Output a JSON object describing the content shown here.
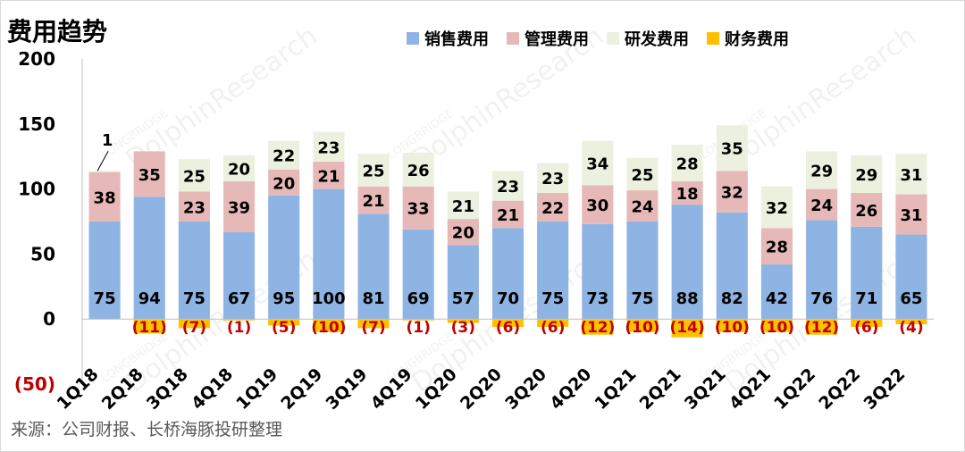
{
  "title": "费用趋势",
  "source": "来源：公司财报、长桥海豚投研整理",
  "colors": {
    "selling": "#8eb4e3",
    "admin": "#e6b9b8",
    "rd": "#ebf1de",
    "finance": "#ffc000",
    "negative_label": "#c00000"
  },
  "chart_data": {
    "type": "bar",
    "stacked": true,
    "categories": [
      "1Q18",
      "2Q18",
      "3Q18",
      "4Q18",
      "1Q19",
      "2Q19",
      "3Q19",
      "4Q19",
      "1Q20",
      "2Q20",
      "3Q20",
      "4Q20",
      "1Q21",
      "2Q21",
      "3Q21",
      "4Q21",
      "1Q22",
      "2Q22",
      "3Q22"
    ],
    "series": [
      {
        "name": "销售费用",
        "color": "#8eb4e3",
        "values": [
          75,
          94,
          75,
          67,
          95,
          100,
          81,
          69,
          57,
          70,
          75,
          73,
          75,
          88,
          82,
          42,
          76,
          71,
          65
        ]
      },
      {
        "name": "管理费用",
        "color": "#e6b9b8",
        "values": [
          38,
          35,
          23,
          39,
          20,
          21,
          21,
          33,
          20,
          21,
          22,
          30,
          24,
          18,
          32,
          28,
          24,
          26,
          31
        ]
      },
      {
        "name": "研发费用",
        "color": "#ebf1de",
        "values": [
          1,
          0,
          25,
          20,
          22,
          23,
          25,
          26,
          21,
          23,
          23,
          34,
          25,
          28,
          35,
          32,
          29,
          29,
          31
        ]
      },
      {
        "name": "财务费用",
        "color": "#ffc000",
        "values": [
          0,
          -11,
          -7,
          -1,
          -5,
          -10,
          -7,
          -1,
          -3,
          -6,
          -6,
          -12,
          -10,
          -14,
          -10,
          -10,
          -12,
          -6,
          -4
        ]
      }
    ],
    "data_labels": {
      "财务费用": [
        "",
        "(11)",
        "(7)",
        "(1)",
        "(5)",
        "(10)",
        "(7)",
        "(1)",
        "(3)",
        "(6)",
        "(6)",
        "(12)",
        "(10)",
        "(14)",
        "(10)",
        "(10)",
        "(12)",
        "(6)",
        "(4)"
      ]
    },
    "y_ticks": [
      "(50)",
      "0",
      "50",
      "100",
      "150",
      "200"
    ],
    "ylim": [
      -50,
      200
    ],
    "legend": "top"
  },
  "watermarks": [
    "LONGBRIDGE",
    "DolphinResearch"
  ]
}
